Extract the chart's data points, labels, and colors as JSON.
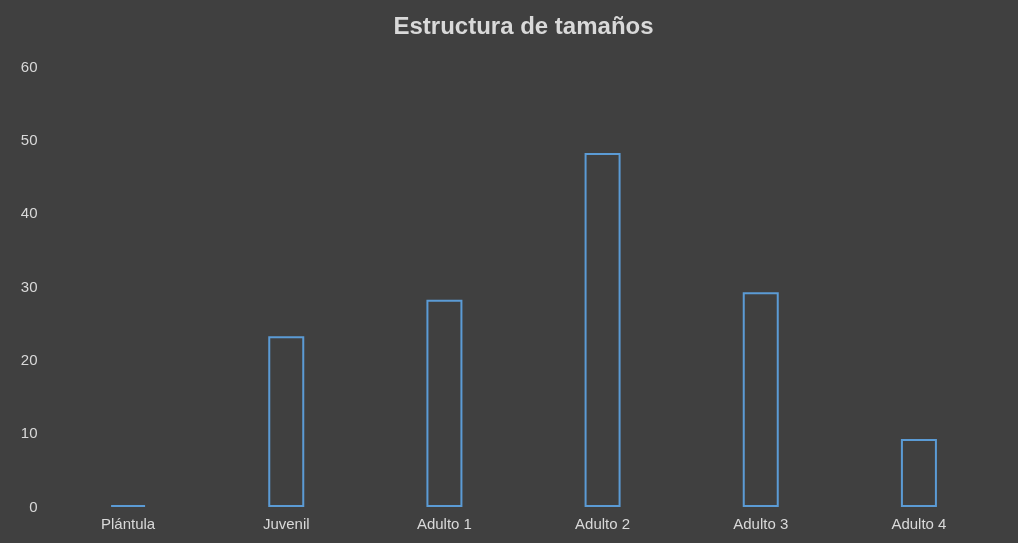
{
  "chart_data": {
    "type": "bar",
    "title": "Estructura de tamaños",
    "categories": [
      "Plántula",
      "Juvenil",
      "Adulto 1",
      "Adulto 2",
      "Adulto 3",
      "Adulto 4"
    ],
    "values": [
      0,
      23,
      28,
      48,
      29,
      9
    ],
    "color": "#5b9bd5",
    "ylim": [
      0,
      60
    ],
    "yticks": [
      0,
      10,
      20,
      30,
      40,
      50,
      60
    ],
    "grid": false
  }
}
